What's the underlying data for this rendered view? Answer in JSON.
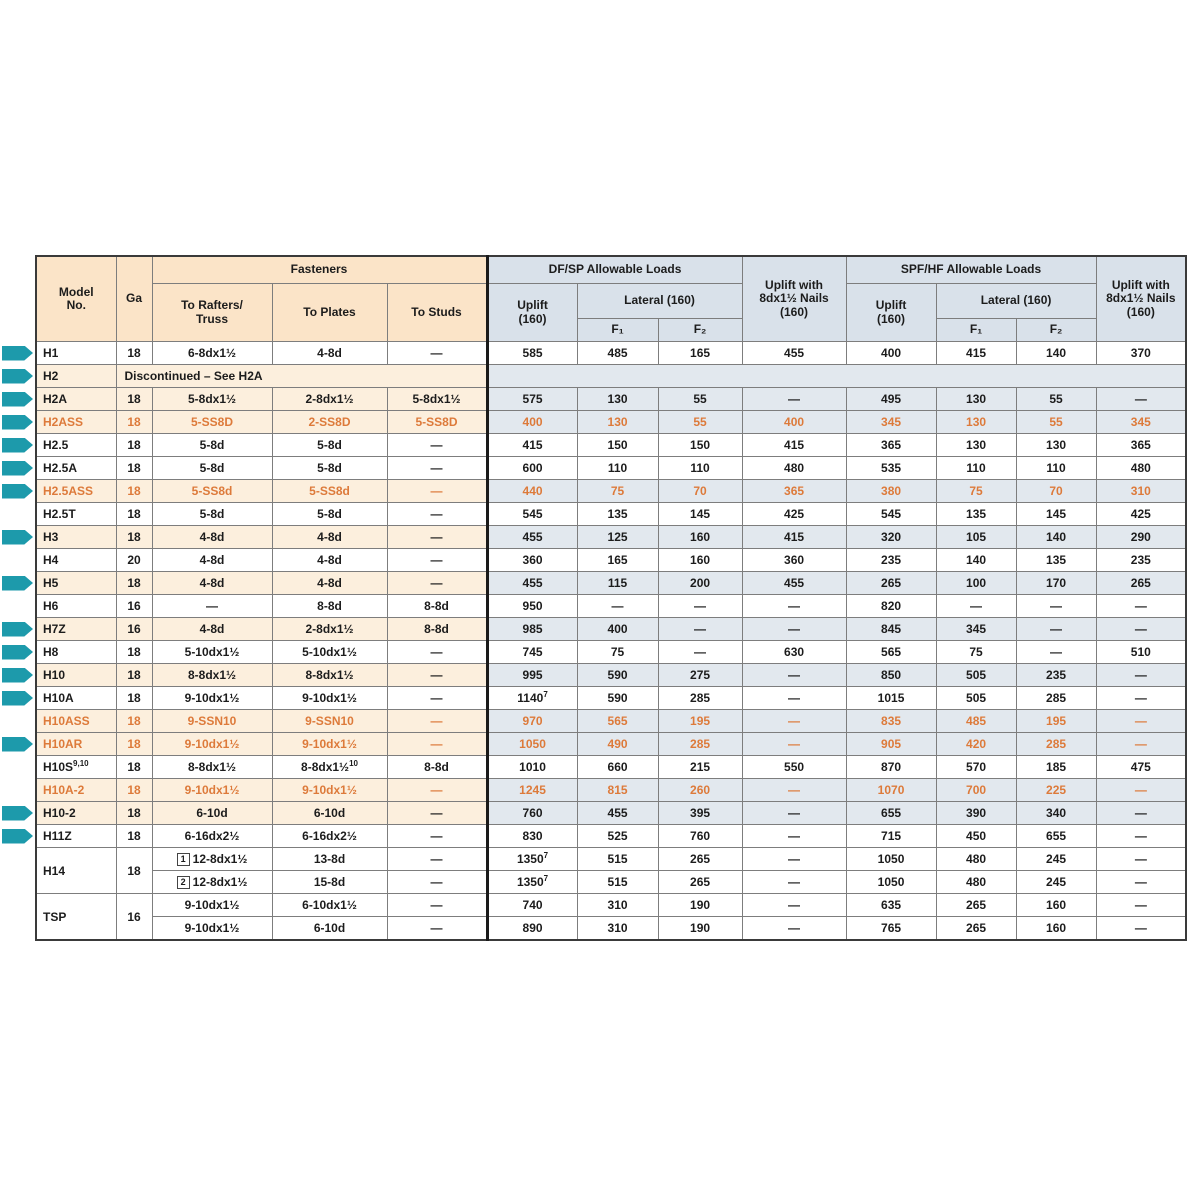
{
  "colors": {
    "accent_teal": "#1d9aab",
    "orange_text": "#dd7a3a",
    "header_peach": "#fbe4c8",
    "header_blue": "#d9e1ea",
    "row_peach": "#fcefdd",
    "row_blue": "#e2e8ee"
  },
  "table": {
    "header": {
      "model": "Model\nNo.",
      "ga": "Ga",
      "fasteners": "Fasteners",
      "to_rafters": "To Rafters/\nTruss",
      "to_plates": "To Plates",
      "to_studs": "To Studs",
      "dfsp": "DF/SP Allowable Loads",
      "spfhf": "SPF/HF Allowable Loads",
      "uplift": "Uplift\n(160)",
      "lateral": "Lateral (160)",
      "f1": "F₁",
      "f2": "F₂",
      "uplift_nails": "Uplift with\n8dx1½ Nails\n(160)"
    },
    "rows": [
      {
        "model": "H1",
        "ga": "18",
        "cells": [
          "6-8dx1½",
          "4-8d",
          "—",
          "585",
          "485",
          "165",
          "455",
          "400",
          "415",
          "140",
          "370"
        ],
        "shaded": false,
        "orange": false,
        "arrow": true
      },
      {
        "model": "H2",
        "ga": "",
        "discontinued": "Discontinued – See H2A",
        "shaded": true,
        "orange": false,
        "arrow": true
      },
      {
        "model": "H2A",
        "ga": "18",
        "cells": [
          "5-8dx1½",
          "2-8dx1½",
          "5-8dx1½",
          "575",
          "130",
          "55",
          "—",
          "495",
          "130",
          "55",
          "—"
        ],
        "shaded": true,
        "orange": false,
        "arrow": true
      },
      {
        "model": "H2ASS",
        "ga": "18",
        "cells": [
          "5-SS8D",
          "2-SS8D",
          "5-SS8D",
          "400",
          "130",
          "55",
          "400",
          "345",
          "130",
          "55",
          "345"
        ],
        "shaded": true,
        "orange": true,
        "arrow": true
      },
      {
        "model": "H2.5",
        "ga": "18",
        "cells": [
          "5-8d",
          "5-8d",
          "—",
          "415",
          "150",
          "150",
          "415",
          "365",
          "130",
          "130",
          "365"
        ],
        "shaded": false,
        "orange": false,
        "arrow": true
      },
      {
        "model": "H2.5A",
        "ga": "18",
        "cells": [
          "5-8d",
          "5-8d",
          "—",
          "600",
          "110",
          "110",
          "480",
          "535",
          "110",
          "110",
          "480"
        ],
        "shaded": false,
        "orange": false,
        "arrow": true
      },
      {
        "model": "H2.5ASS",
        "ga": "18",
        "cells": [
          "5-SS8d",
          "5-SS8d",
          "—",
          "440",
          "75",
          "70",
          "365",
          "380",
          "75",
          "70",
          "310"
        ],
        "shaded": true,
        "orange": true,
        "arrow": true
      },
      {
        "model": "H2.5T",
        "ga": "18",
        "cells": [
          "5-8d",
          "5-8d",
          "—",
          "545",
          "135",
          "145",
          "425",
          "545",
          "135",
          "145",
          "425"
        ],
        "shaded": false,
        "orange": false,
        "arrow": false
      },
      {
        "model": "H3",
        "ga": "18",
        "cells": [
          "4-8d",
          "4-8d",
          "—",
          "455",
          "125",
          "160",
          "415",
          "320",
          "105",
          "140",
          "290"
        ],
        "shaded": true,
        "orange": false,
        "arrow": true
      },
      {
        "model": "H4",
        "ga": "20",
        "cells": [
          "4-8d",
          "4-8d",
          "—",
          "360",
          "165",
          "160",
          "360",
          "235",
          "140",
          "135",
          "235"
        ],
        "shaded": false,
        "orange": false,
        "arrow": false
      },
      {
        "model": "H5",
        "ga": "18",
        "cells": [
          "4-8d",
          "4-8d",
          "—",
          "455",
          "115",
          "200",
          "455",
          "265",
          "100",
          "170",
          "265"
        ],
        "shaded": true,
        "orange": false,
        "arrow": true
      },
      {
        "model": "H6",
        "ga": "16",
        "cells": [
          "—",
          "8-8d",
          "8-8d",
          "950",
          "—",
          "—",
          "—",
          "820",
          "—",
          "—",
          "—"
        ],
        "shaded": false,
        "orange": false,
        "arrow": false
      },
      {
        "model": "H7Z",
        "ga": "16",
        "cells": [
          "4-8d",
          "2-8dx1½",
          "8-8d",
          "985",
          "400",
          "—",
          "—",
          "845",
          "345",
          "—",
          "—"
        ],
        "shaded": true,
        "orange": false,
        "arrow": true
      },
      {
        "model": "H8",
        "ga": "18",
        "cells": [
          "5-10dx1½",
          "5-10dx1½",
          "—",
          "745",
          "75",
          "—",
          "630",
          "565",
          "75",
          "—",
          "510"
        ],
        "shaded": false,
        "orange": false,
        "arrow": true
      },
      {
        "model": "H10",
        "ga": "18",
        "cells": [
          "8-8dx1½",
          "8-8dx1½",
          "—",
          "995",
          "590",
          "275",
          "—",
          "850",
          "505",
          "235",
          "—"
        ],
        "shaded": true,
        "orange": false,
        "arrow": true
      },
      {
        "model": "H10A",
        "ga": "18",
        "cells": [
          "9-10dx1½",
          "9-10dx1½",
          "—",
          "1140^{7}",
          "590",
          "285",
          "—",
          "1015",
          "505",
          "285",
          "—"
        ],
        "shaded": false,
        "orange": false,
        "arrow": true
      },
      {
        "model": "H10ASS",
        "ga": "18",
        "cells": [
          "9-SSN10",
          "9-SSN10",
          "—",
          "970",
          "565",
          "195",
          "—",
          "835",
          "485",
          "195",
          "—"
        ],
        "shaded": true,
        "orange": true,
        "arrow": false
      },
      {
        "model": "H10AR",
        "ga": "18",
        "cells": [
          "9-10dx1½",
          "9-10dx1½",
          "—",
          "1050",
          "490",
          "285",
          "—",
          "905",
          "420",
          "285",
          "—"
        ],
        "shaded": true,
        "orange": true,
        "arrow": true
      },
      {
        "model": "H10S^{9,10}",
        "ga": "18",
        "cells": [
          "8-8dx1½",
          "8-8dx1½^{10}",
          "8-8d",
          "1010",
          "660",
          "215",
          "550",
          "870",
          "570",
          "185",
          "475"
        ],
        "shaded": false,
        "orange": false,
        "arrow": false
      },
      {
        "model": "H10A-2",
        "ga": "18",
        "cells": [
          "9-10dx1½",
          "9-10dx1½",
          "—",
          "1245",
          "815",
          "260",
          "—",
          "1070",
          "700",
          "225",
          "—"
        ],
        "shaded": true,
        "orange": true,
        "arrow": false
      },
      {
        "model": "H10-2",
        "ga": "18",
        "cells": [
          "6-10d",
          "6-10d",
          "—",
          "760",
          "455",
          "395",
          "—",
          "655",
          "390",
          "340",
          "—"
        ],
        "shaded": true,
        "orange": false,
        "arrow": true
      },
      {
        "model": "H11Z",
        "ga": "18",
        "cells": [
          "6-16dx2½",
          "6-16dx2½",
          "—",
          "830",
          "525",
          "760",
          "—",
          "715",
          "450",
          "655",
          "—"
        ],
        "shaded": false,
        "orange": false,
        "arrow": true
      },
      {
        "model": "H14",
        "ga": "18",
        "rowspan": 2,
        "cells": [
          "[1] 12-8dx1½",
          "13-8d",
          "—",
          "1350^{7}",
          "515",
          "265",
          "—",
          "1050",
          "480",
          "245",
          "—"
        ],
        "shaded": false,
        "orange": false,
        "arrow": false
      },
      {
        "span": true,
        "cells": [
          "[2] 12-8dx1½",
          "15-8d",
          "—",
          "1350^{7}",
          "515",
          "265",
          "—",
          "1050",
          "480",
          "245",
          "—"
        ],
        "shaded": false,
        "orange": false,
        "arrow": false
      },
      {
        "model": "TSP",
        "ga": "16",
        "rowspan": 2,
        "cells": [
          "9-10dx1½",
          "6-10dx1½",
          "—",
          "740",
          "310",
          "190",
          "—",
          "635",
          "265",
          "160",
          "—"
        ],
        "shaded": false,
        "orange": false,
        "arrow": false
      },
      {
        "span": true,
        "cells": [
          "9-10dx1½",
          "6-10d",
          "—",
          "890",
          "310",
          "190",
          "—",
          "765",
          "265",
          "160",
          "—"
        ],
        "shaded": false,
        "orange": false,
        "arrow": false
      }
    ]
  }
}
